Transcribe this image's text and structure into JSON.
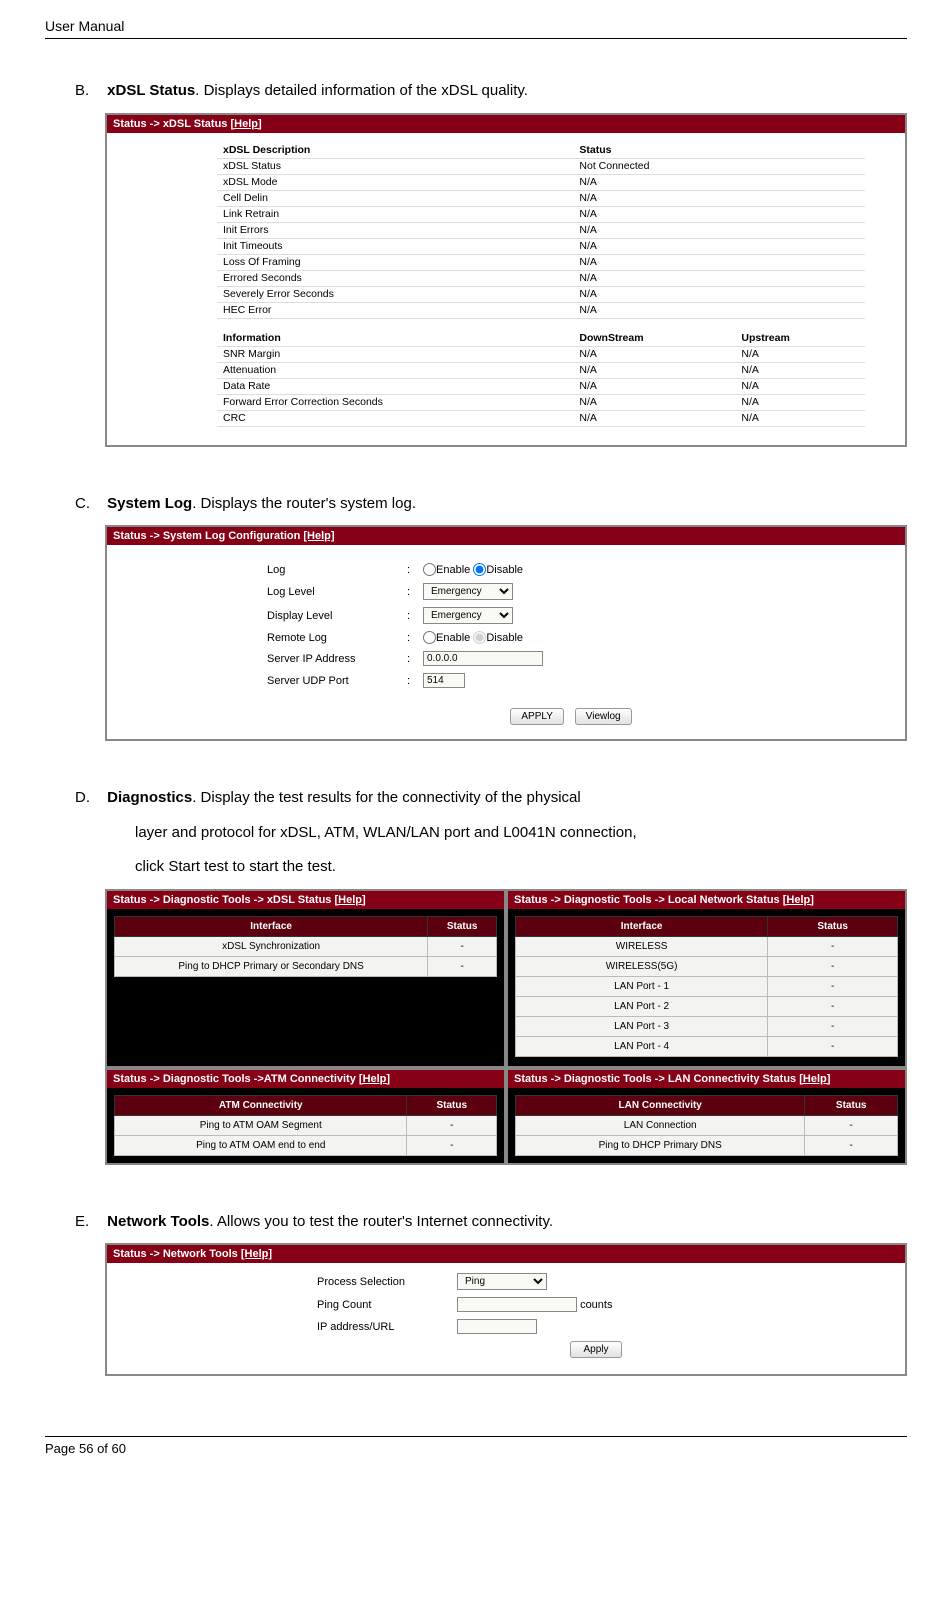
{
  "page": {
    "header": "User Manual",
    "footerPrefix": "Page ",
    "footerCurrent": "56",
    "footerMid": " of ",
    "footerTotal": "60"
  },
  "sections": {
    "b": {
      "letter": "B.",
      "title": "xDSL Status",
      "desc": ". Displays detailed information of the xDSL quality."
    },
    "c": {
      "letter": "C.",
      "title": "System Log",
      "desc": ". Displays the router's system log."
    },
    "d": {
      "letter": "D.",
      "title": "Diagnostics",
      "desc": ". Display the test results for the connectivity of the physical",
      "cont1": "layer and protocol for xDSL, ATM, WLAN/LAN port and L0041N connection,",
      "cont2": "click Start test to start the test."
    },
    "e": {
      "letter": "E.",
      "title": "Network Tools",
      "desc": ". Allows you to test the router's Internet connectivity."
    }
  },
  "xdsl": {
    "breadcrumb": "Status -> xDSL Status ",
    "help": "[Help]",
    "h1": "xDSL Description",
    "h2": "Status",
    "rows1": [
      [
        "xDSL Status",
        "Not Connected"
      ],
      [
        "xDSL Mode",
        "N/A"
      ],
      [
        "Cell Delin",
        "N/A"
      ],
      [
        "Link Retrain",
        "N/A"
      ],
      [
        "Init Errors",
        "N/A"
      ],
      [
        "Init Timeouts",
        "N/A"
      ],
      [
        "Loss Of Framing",
        "N/A"
      ],
      [
        "Errored Seconds",
        "N/A"
      ],
      [
        "Severely Error Seconds",
        "N/A"
      ],
      [
        "HEC Error",
        "N/A"
      ]
    ],
    "h3": "Information",
    "h4": "DownStream",
    "h5": "Upstream",
    "rows2": [
      [
        "SNR Margin",
        "N/A",
        "N/A"
      ],
      [
        "Attenuation",
        "N/A",
        "N/A"
      ],
      [
        "Data Rate",
        "N/A",
        "N/A"
      ],
      [
        "Forward Error Correction Seconds",
        "N/A",
        "N/A"
      ],
      [
        "CRC",
        "N/A",
        "N/A"
      ]
    ]
  },
  "syslog": {
    "breadcrumb": "Status -> System Log Configuration ",
    "help": "[Help]",
    "labels": {
      "log": "Log",
      "loglevel": "Log Level",
      "displevel": "Display Level",
      "remote": "Remote Log",
      "serverip": "Server IP Address",
      "serverport": "Server UDP Port"
    },
    "enable": "Enable",
    "disable": "Disable",
    "level": "Emergency",
    "ip": "0.0.0.0",
    "port": "514",
    "btnApply": "APPLY",
    "btnView": "Viewlog"
  },
  "diag": {
    "b1": "Status -> Diagnostic Tools -> xDSL Status ",
    "help": "[Help]",
    "b2": "Status -> Diagnostic Tools -> Local Network Status ",
    "b3": "Status -> Diagnostic Tools ->ATM Connectivity ",
    "b4": "Status -> Diagnostic Tools -> LAN Connectivity Status ",
    "t1h1": "Interface",
    "t1h2": "Status",
    "t1r": [
      [
        "xDSL Synchronization",
        "-"
      ],
      [
        "Ping to DHCP Primary or Secondary DNS",
        "-"
      ]
    ],
    "t2r": [
      [
        "WIRELESS",
        "-"
      ],
      [
        "WIRELESS(5G)",
        "-"
      ],
      [
        "LAN Port - 1",
        "-"
      ],
      [
        "LAN Port - 2",
        "-"
      ],
      [
        "LAN Port - 3",
        "-"
      ],
      [
        "LAN Port - 4",
        "-"
      ]
    ],
    "t3h1": "ATM Connectivity",
    "t3r": [
      [
        "Ping to ATM OAM Segment",
        "-"
      ],
      [
        "Ping to ATM OAM end to end",
        "-"
      ]
    ],
    "t4h1": "LAN Connectivity",
    "t4r": [
      [
        "LAN Connection",
        "-"
      ],
      [
        "Ping to DHCP Primary DNS",
        "-"
      ]
    ]
  },
  "nt": {
    "breadcrumb": "Status -> Network Tools ",
    "help": "[Help]",
    "labels": {
      "proc": "Process Selection",
      "count": "Ping Count",
      "ip": "IP address/URL"
    },
    "procval": "Ping",
    "counts": "counts",
    "btn": "Apply"
  }
}
